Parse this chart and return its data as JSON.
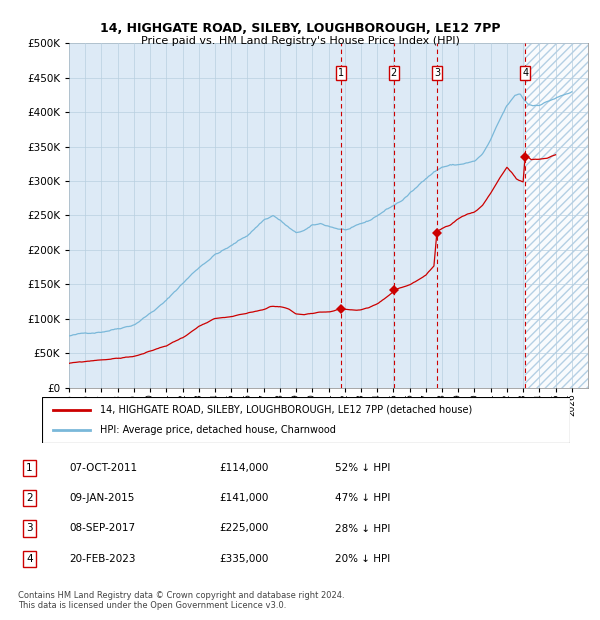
{
  "title1": "14, HIGHGATE ROAD, SILEBY, LOUGHBOROUGH, LE12 7PP",
  "title2": "Price paid vs. HM Land Registry's House Price Index (HPI)",
  "legend1": "14, HIGHGATE ROAD, SILEBY, LOUGHBOROUGH, LE12 7PP (detached house)",
  "legend2": "HPI: Average price, detached house, Charnwood",
  "footer": "Contains HM Land Registry data © Crown copyright and database right 2024.\nThis data is licensed under the Open Government Licence v3.0.",
  "transactions": [
    {
      "num": 1,
      "date": "07-OCT-2011",
      "price": 114000,
      "hpi_pct": "52% ↓ HPI",
      "date_x": 2011.77
    },
    {
      "num": 2,
      "date": "09-JAN-2015",
      "price": 141000,
      "hpi_pct": "47% ↓ HPI",
      "date_x": 2015.03
    },
    {
      "num": 3,
      "date": "08-SEP-2017",
      "price": 225000,
      "hpi_pct": "28% ↓ HPI",
      "date_x": 2017.69
    },
    {
      "num": 4,
      "date": "20-FEB-2023",
      "price": 335000,
      "hpi_pct": "20% ↓ HPI",
      "date_x": 2023.13
    }
  ],
  "row_entries": [
    [
      1,
      "07-OCT-2011",
      "£114,000",
      "52% ↓ HPI"
    ],
    [
      2,
      "09-JAN-2015",
      "£141,000",
      "47% ↓ HPI"
    ],
    [
      3,
      "08-SEP-2017",
      "£225,000",
      "28% ↓ HPI"
    ],
    [
      4,
      "20-FEB-2023",
      "£335,000",
      "20% ↓ HPI"
    ]
  ],
  "xlim": [
    1995,
    2027
  ],
  "ylim": [
    0,
    500000
  ],
  "yticks": [
    0,
    50000,
    100000,
    150000,
    200000,
    250000,
    300000,
    350000,
    400000,
    450000,
    500000
  ],
  "hpi_color": "#7ab8d9",
  "price_color": "#cc0000",
  "bg_color": "#ddeaf6",
  "hatch_color": "#a8c8e0",
  "vline_color": "#cc0000",
  "grid_color": "#b8cfe0",
  "marker_color": "#cc0000",
  "marker_prices": [
    114000,
    141000,
    225000,
    335000
  ],
  "hpi_anchors": [
    [
      1995.0,
      75000
    ],
    [
      1996.0,
      78000
    ],
    [
      1997.0,
      82000
    ],
    [
      1998.0,
      88000
    ],
    [
      1999.0,
      95000
    ],
    [
      2000.0,
      112000
    ],
    [
      2001.0,
      130000
    ],
    [
      2002.0,
      155000
    ],
    [
      2003.0,
      178000
    ],
    [
      2004.0,
      198000
    ],
    [
      2005.0,
      210000
    ],
    [
      2006.0,
      225000
    ],
    [
      2007.0,
      248000
    ],
    [
      2007.6,
      255000
    ],
    [
      2008.0,
      248000
    ],
    [
      2008.5,
      238000
    ],
    [
      2009.0,
      228000
    ],
    [
      2009.5,
      232000
    ],
    [
      2010.0,
      238000
    ],
    [
      2010.5,
      240000
    ],
    [
      2011.0,
      237000
    ],
    [
      2011.5,
      234000
    ],
    [
      2012.0,
      232000
    ],
    [
      2012.5,
      234000
    ],
    [
      2013.0,
      238000
    ],
    [
      2013.5,
      242000
    ],
    [
      2014.0,
      250000
    ],
    [
      2014.5,
      258000
    ],
    [
      2015.0,
      265000
    ],
    [
      2015.5,
      272000
    ],
    [
      2016.0,
      282000
    ],
    [
      2016.5,
      292000
    ],
    [
      2017.0,
      305000
    ],
    [
      2017.5,
      315000
    ],
    [
      2018.0,
      322000
    ],
    [
      2018.5,
      325000
    ],
    [
      2019.0,
      325000
    ],
    [
      2019.5,
      328000
    ],
    [
      2020.0,
      330000
    ],
    [
      2020.5,
      340000
    ],
    [
      2021.0,
      360000
    ],
    [
      2021.5,
      385000
    ],
    [
      2022.0,
      408000
    ],
    [
      2022.5,
      422000
    ],
    [
      2022.8,
      425000
    ],
    [
      2023.0,
      418000
    ],
    [
      2023.3,
      410000
    ],
    [
      2023.6,
      408000
    ],
    [
      2024.0,
      410000
    ],
    [
      2024.5,
      415000
    ],
    [
      2025.0,
      420000
    ],
    [
      2026.0,
      428000
    ]
  ],
  "price_anchors": [
    [
      1995.0,
      35000
    ],
    [
      1996.0,
      37000
    ],
    [
      1997.0,
      40000
    ],
    [
      1998.0,
      42000
    ],
    [
      1999.0,
      45000
    ],
    [
      2000.0,
      52000
    ],
    [
      2001.0,
      60000
    ],
    [
      2002.0,
      72000
    ],
    [
      2003.0,
      88000
    ],
    [
      2004.0,
      98000
    ],
    [
      2005.0,
      100000
    ],
    [
      2006.0,
      104000
    ],
    [
      2007.0,
      110000
    ],
    [
      2007.5,
      115000
    ],
    [
      2008.0,
      115000
    ],
    [
      2008.5,
      112000
    ],
    [
      2009.0,
      104000
    ],
    [
      2009.5,
      103000
    ],
    [
      2010.0,
      106000
    ],
    [
      2010.5,
      108000
    ],
    [
      2011.0,
      109000
    ],
    [
      2011.5,
      112000
    ],
    [
      2011.77,
      114000
    ],
    [
      2012.0,
      113000
    ],
    [
      2012.5,
      112000
    ],
    [
      2013.0,
      112000
    ],
    [
      2013.5,
      115000
    ],
    [
      2014.0,
      120000
    ],
    [
      2014.5,
      128000
    ],
    [
      2015.0,
      138000
    ],
    [
      2015.03,
      141000
    ],
    [
      2015.5,
      144000
    ],
    [
      2016.0,
      148000
    ],
    [
      2016.5,
      155000
    ],
    [
      2017.0,
      162000
    ],
    [
      2017.5,
      175000
    ],
    [
      2017.69,
      225000
    ],
    [
      2018.0,
      228000
    ],
    [
      2018.5,
      232000
    ],
    [
      2019.0,
      242000
    ],
    [
      2019.5,
      248000
    ],
    [
      2020.0,
      252000
    ],
    [
      2020.5,
      262000
    ],
    [
      2021.0,
      280000
    ],
    [
      2021.5,
      300000
    ],
    [
      2022.0,
      318000
    ],
    [
      2022.3,
      310000
    ],
    [
      2022.6,
      300000
    ],
    [
      2023.0,
      296000
    ],
    [
      2023.13,
      335000
    ],
    [
      2023.5,
      328000
    ],
    [
      2024.0,
      328000
    ],
    [
      2024.5,
      330000
    ],
    [
      2025.0,
      335000
    ]
  ]
}
